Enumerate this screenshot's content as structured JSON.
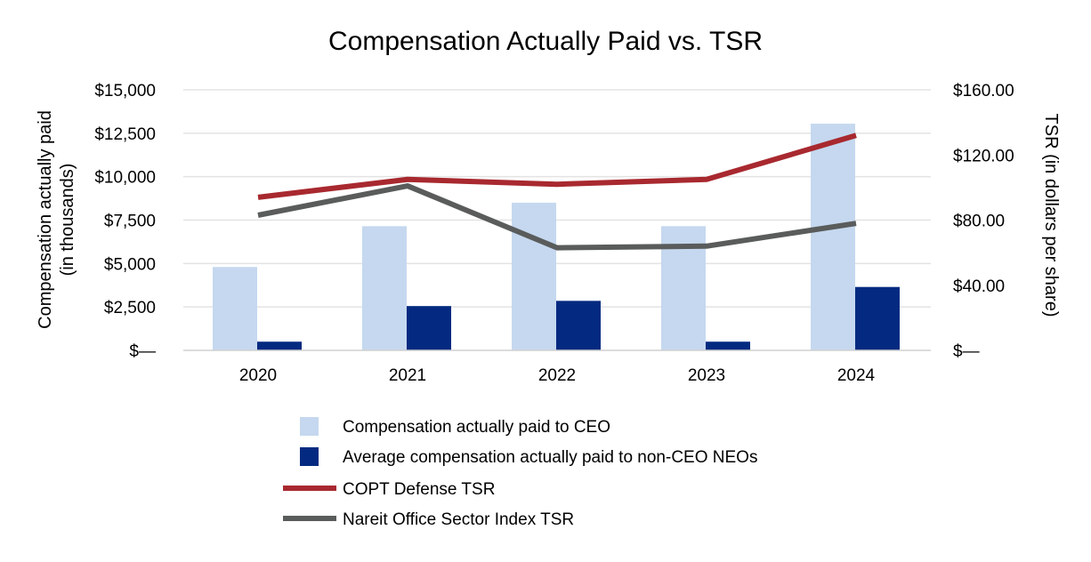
{
  "chart_data": {
    "type": "bar+line",
    "title": "Compensation Actually Paid vs. TSR",
    "categories": [
      "2020",
      "2021",
      "2022",
      "2023",
      "2024"
    ],
    "left_axis": {
      "label_line1": "Compensation actually paid",
      "label_line2": "(in thousands)",
      "ylim": [
        0,
        15000
      ],
      "tick_labels": [
        "$—",
        "$2,500",
        "$5,000",
        "$7,500",
        "$10,000",
        "$12,500",
        "$15,000"
      ]
    },
    "right_axis": {
      "label": "TSR (in dollars per share)",
      "ylim": [
        0,
        160
      ],
      "tick_labels": [
        "$—",
        "$40.00",
        "$80.00",
        "$120.00",
        "$160.00"
      ]
    },
    "bar_series": [
      {
        "name": "Compensation actually paid to CEO",
        "color": "#c5d8ef",
        "values": [
          4800,
          7150,
          8500,
          7150,
          13050
        ]
      },
      {
        "name": "Average compensation actually paid to non-CEO NEOs",
        "color": "#032a80",
        "values": [
          500,
          2550,
          2850,
          500,
          3650
        ]
      }
    ],
    "line_series": [
      {
        "name": "COPT Defense TSR",
        "color": "#a8292f",
        "values": [
          94,
          105,
          102,
          105,
          132
        ]
      },
      {
        "name": "Nareit Office Sector Index TSR",
        "color": "#5a5c5c",
        "values": [
          83,
          101,
          63,
          64,
          78
        ]
      }
    ],
    "grid": true,
    "legend_position": "bottom"
  }
}
